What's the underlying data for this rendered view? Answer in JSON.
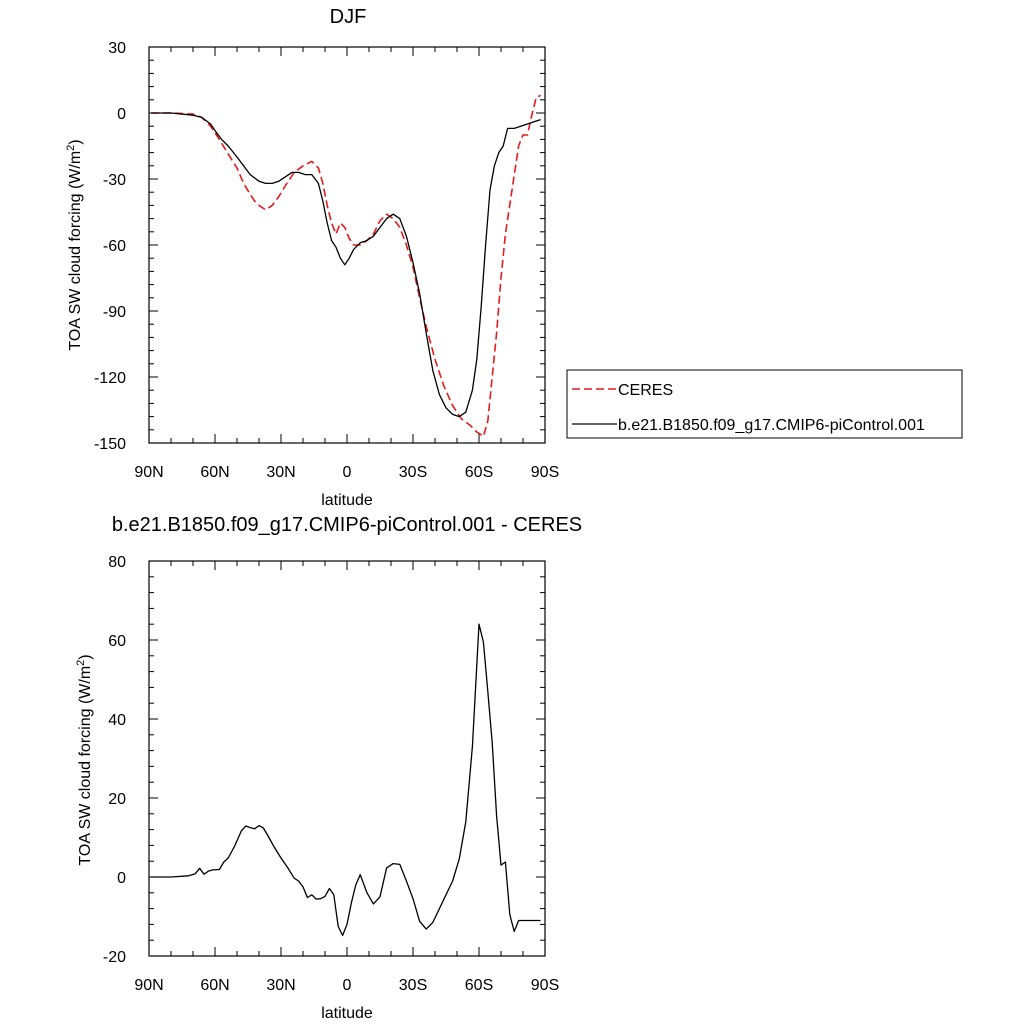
{
  "chart_data": [
    {
      "type": "line",
      "title": "DJF",
      "xlabel": "latitude",
      "ylabel": "TOA SW cloud forcing (W/m",
      "ylabel_sup": "2",
      "ylabel_end": ")",
      "xlim": [
        90,
        -90
      ],
      "ylim": [
        -150,
        30
      ],
      "xticks": [
        90,
        60,
        30,
        0,
        -30,
        -60,
        -90
      ],
      "xtick_labels": [
        "90N",
        "60N",
        "30N",
        "0",
        "30S",
        "60S",
        "90S"
      ],
      "yticks": [
        30,
        0,
        -30,
        -60,
        -90,
        -120,
        -150
      ],
      "ytick_labels": [
        "30",
        "0",
        "-30",
        "-60",
        "-90",
        "-120",
        "-150"
      ],
      "legend": "outside-right",
      "series": [
        {
          "name": "CERES",
          "color": "#e41a1c",
          "dash": "dashed",
          "x": [
            89,
            80,
            70,
            66,
            62,
            58,
            55,
            50,
            47,
            44,
            42,
            40,
            37,
            34,
            31,
            28,
            24,
            20,
            16,
            13,
            11,
            9,
            7,
            5,
            3,
            1,
            -1,
            -3,
            -6,
            -9,
            -12,
            -15,
            -18,
            -21,
            -24,
            -27,
            -30,
            -33,
            -36,
            -40,
            -44,
            -48,
            -52,
            -56,
            -59,
            -62,
            -64,
            -66,
            -68,
            -70,
            -72,
            -75,
            -78,
            -80,
            -82,
            -84,
            -86,
            -88
          ],
          "y": [
            0,
            0,
            -0.5,
            -2,
            -6,
            -12,
            -17,
            -25,
            -32,
            -37,
            -40,
            -42,
            -44,
            -42,
            -38,
            -33,
            -27,
            -24,
            -22,
            -25,
            -32,
            -42,
            -50,
            -55,
            -50,
            -52,
            -57,
            -60,
            -60,
            -58,
            -55,
            -49,
            -46,
            -48,
            -52,
            -60,
            -70,
            -84,
            -97,
            -112,
            -124,
            -133,
            -139,
            -142,
            -145,
            -147,
            -140,
            -120,
            -100,
            -75,
            -55,
            -35,
            -15,
            -10,
            -10,
            -1,
            7,
            8
          ]
        },
        {
          "name": "b.e21.B1850.f09_g17.CMIP6-piControl.001",
          "color": "#000000",
          "dash": "solid",
          "x": [
            89,
            80,
            70,
            66,
            62,
            60,
            57,
            54,
            50,
            47,
            44,
            40,
            37,
            34,
            31,
            28,
            25,
            22,
            19,
            16,
            13,
            11,
            9,
            7,
            5,
            3,
            1,
            -1,
            -3,
            -6,
            -9,
            -12,
            -15,
            -18,
            -21,
            -24,
            -27,
            -30,
            -33,
            -36,
            -39,
            -42,
            -45,
            -48,
            -51,
            -54,
            -57,
            -59,
            -61,
            -63,
            -65,
            -67,
            -69,
            -71,
            -73,
            -76,
            -79,
            -82,
            -85,
            -88
          ],
          "y": [
            0,
            0,
            -1,
            -2,
            -5,
            -8,
            -12,
            -15,
            -20,
            -24,
            -28,
            -31,
            -32,
            -32,
            -31,
            -29,
            -27,
            -27,
            -28,
            -28,
            -32,
            -40,
            -50,
            -58,
            -61,
            -66,
            -69,
            -66,
            -62,
            -59,
            -58,
            -56,
            -52,
            -48,
            -46,
            -48,
            -56,
            -68,
            -82,
            -100,
            -117,
            -128,
            -134,
            -137,
            -138,
            -136,
            -126,
            -112,
            -88,
            -60,
            -35,
            -24,
            -18,
            -15,
            -7,
            -7,
            -6,
            -5,
            -4,
            -3
          ]
        }
      ]
    },
    {
      "type": "line",
      "title": "b.e21.B1850.f09_g17.CMIP6-piControl.001 - CERES",
      "xlabel": "latitude",
      "ylabel": "TOA SW cloud forcing (W/m",
      "ylabel_sup": "2",
      "ylabel_end": ")",
      "xlim": [
        90,
        -90
      ],
      "ylim": [
        -20,
        80
      ],
      "xticks": [
        90,
        60,
        30,
        0,
        -30,
        -60,
        -90
      ],
      "xtick_labels": [
        "90N",
        "60N",
        "30N",
        "0",
        "30S",
        "60S",
        "90S"
      ],
      "yticks": [
        80,
        60,
        40,
        20,
        0,
        -20
      ],
      "ytick_labels": [
        "80",
        "60",
        "40",
        "20",
        "0",
        "-20"
      ],
      "series": [
        {
          "name": "",
          "color": "#000000",
          "dash": "solid",
          "x": [
            89,
            80,
            72,
            69,
            67,
            65,
            63,
            61,
            58,
            56,
            54,
            51,
            48,
            46,
            44,
            42,
            40,
            38,
            36,
            33,
            30,
            27,
            24,
            22,
            20,
            18,
            16,
            14,
            12,
            10,
            8,
            6,
            4,
            2,
            0,
            -2,
            -4,
            -6,
            -9,
            -12,
            -15,
            -18,
            -21,
            -24,
            -27,
            -30,
            -33,
            -36,
            -39,
            -42,
            -45,
            -48,
            -51,
            -54,
            -57,
            -60,
            -62,
            -64,
            -66,
            -68,
            -70,
            -72,
            -74,
            -76,
            -78,
            -80,
            -82,
            -84,
            -86,
            -88
          ],
          "y": [
            0,
            0,
            0.3,
            0.8,
            2.2,
            0.7,
            1.5,
            1.8,
            1.9,
            3.8,
            4.8,
            7.9,
            11.7,
            12.9,
            12.5,
            12.2,
            13.0,
            12.4,
            10.5,
            7.5,
            4.8,
            2.4,
            -0.3,
            -1.0,
            -2.5,
            -5.2,
            -4.5,
            -5.6,
            -5.5,
            -4.9,
            -2.9,
            -4.5,
            -12.5,
            -14.8,
            -12.0,
            -6.5,
            -2.0,
            0.6,
            -3.9,
            -6.8,
            -5.0,
            2.3,
            3.4,
            3.2,
            -1.0,
            -5.5,
            -11.2,
            -13.2,
            -11.5,
            -8.0,
            -4.5,
            -1.0,
            4.5,
            14.0,
            33.0,
            64.0,
            59.5,
            47.0,
            34.0,
            15.5,
            3.0,
            3.8,
            -9.5,
            -13.8,
            -11.0,
            -11.0,
            -11.0,
            -11.0,
            -11.0,
            -11.0
          ]
        }
      ]
    }
  ]
}
